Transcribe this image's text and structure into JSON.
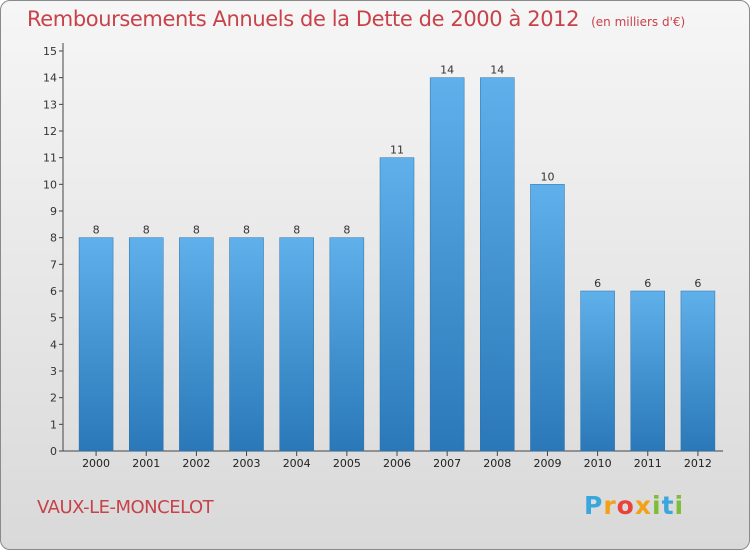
{
  "title": "Remboursements Annuels de la Dette de 2000 à 2012",
  "subtitle": "(en milliers d'€)",
  "place": "VAUX-LE-MONCELOT",
  "logo": {
    "letters": [
      "P",
      "r",
      "o",
      "x",
      "i",
      "t",
      "i"
    ],
    "colors": [
      "#3aa6de",
      "#f3a11b",
      "#e8423a",
      "#f3a11b",
      "#7dbd3a",
      "#3aa6de",
      "#7dbd3a"
    ]
  },
  "colors": {
    "bar_top": "#5fb0eb",
    "bar_bottom": "#2a78b8",
    "title": "#c8424a"
  },
  "chart_data": {
    "type": "bar",
    "title": "Remboursements Annuels de la Dette de 2000 à 2012",
    "categories": [
      "2000",
      "2001",
      "2002",
      "2003",
      "2004",
      "2005",
      "2006",
      "2007",
      "2008",
      "2009",
      "2010",
      "2011",
      "2012"
    ],
    "values": [
      8,
      8,
      8,
      8,
      8,
      8,
      11,
      14,
      14,
      10,
      6,
      6,
      6
    ],
    "ylim": [
      0,
      15
    ],
    "yticks": [
      0,
      1,
      2,
      3,
      4,
      5,
      6,
      7,
      8,
      9,
      10,
      11,
      12,
      13,
      14,
      15
    ],
    "grid": false,
    "xlabel": "",
    "ylabel": ""
  }
}
